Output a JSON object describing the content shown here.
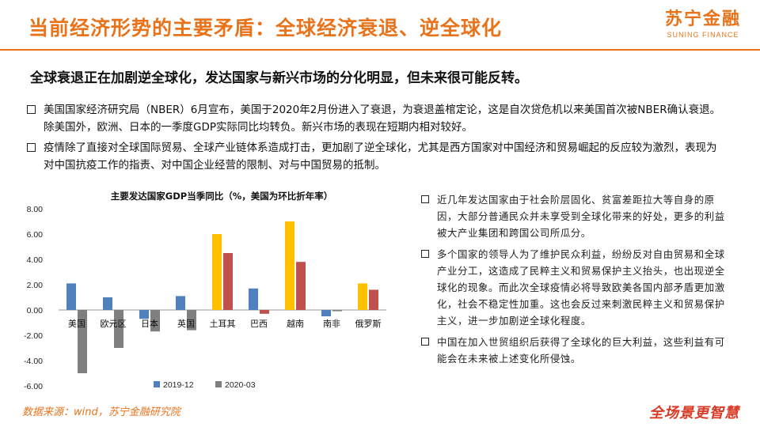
{
  "header": {
    "title": "当前经济形势的主要矛盾：全球经济衰退、逆全球化",
    "logo_cn": "苏宁金融",
    "logo_en": "SUNING FINANCE",
    "accent_color": "#e8731a"
  },
  "subtitle": "全球衰退正在加剧逆全球化，发达国家与新兴市场的分化明显，但未来很可能反转。",
  "bullets": [
    "美国国家经济研究局（NBER）6月宣布，美国于2020年2月份进入了衰退，为衰退盖棺定论，这是自次贷危机以来美国首次被NBER确认衰退。除美国外，欧洲、日本的一季度GDP实际同比均转负。新兴市场的表现在短期内相对较好。",
    "疫情除了直接对全球国际贸易、全球产业链体系造成打击，更加剧了逆全球化，尤其是西方国家对中国经济和贸易崛起的反应较为激烈，表现为对中国抗疫工作的指责、对中国企业经营的限制、对与中国贸易的抵制。"
  ],
  "right_bullets": [
    "近几年发达国家由于社会阶层固化、贫富差距拉大等自身的原因，大部分普通民众并未享受到全球化带来的好处，更多的利益被大产业集团和跨国公司所瓜分。",
    "多个国家的领导人为了维护民众利益，纷纷反对自由贸易和全球产业分工，这造成了民粹主义和贸易保护主义抬头，也出现逆全球化的现象。而此次全球疫情必将导致欧美各国内部矛盾更加激化，社会不稳定性加重。这也会反过来刺激民粹主义和贸易保护主义，进一步加剧逆全球化程度。",
    "中国在加入世贸组织后获得了全球化的巨大利益，这些利益有可能会在未来被上述变化所侵蚀。"
  ],
  "chart_data": {
    "type": "bar",
    "title": "主要发达国家GDP当季同比（%，美国为环比折年率）",
    "categories": [
      "美国",
      "欧元区",
      "日本",
      "英国",
      "土耳其",
      "巴西",
      "越南",
      "南非",
      "俄罗斯"
    ],
    "series": [
      {
        "name": "2019-12",
        "values": [
          2.1,
          1.0,
          -0.7,
          1.1,
          6.0,
          1.7,
          7.0,
          -0.5,
          2.1
        ]
      },
      {
        "name": "2020-03",
        "values": [
          -5.0,
          -3.0,
          -1.7,
          -1.6,
          4.5,
          -0.3,
          3.8,
          -0.1,
          1.6
        ]
      }
    ],
    "ylim": [
      -6,
      8
    ],
    "yticks": [
      "8.00",
      "6.00",
      "4.00",
      "2.00",
      "0.00",
      "-2.00",
      "-4.00",
      "-6.00"
    ],
    "legend": "bottom",
    "colors": {
      "series1": "#4f81bd",
      "series2": "#7f7f7f",
      "turkey": "#ffc000",
      "turkey2": "#c0504d",
      "vietnam2": "#c0504d",
      "brazil2": "#c0504d",
      "russia": "#ffc000",
      "russia2": "#c0504d",
      "vietnam": "#ffc000"
    }
  },
  "footer": {
    "source": "数据来源：wind，苏宁金融研究院",
    "slogan": "全场景更智慧"
  }
}
